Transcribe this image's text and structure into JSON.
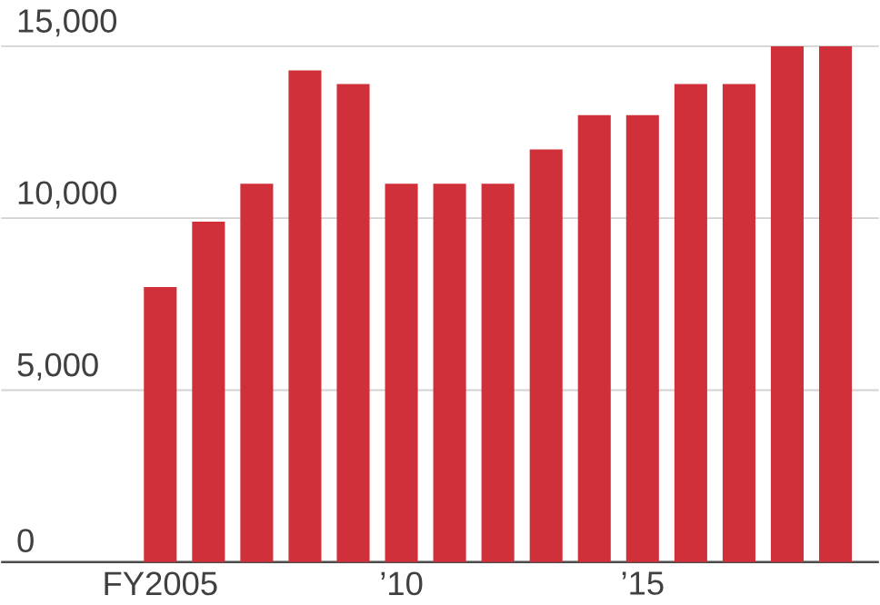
{
  "chart_data": {
    "type": "bar",
    "categories": [
      "FY2005",
      null,
      null,
      null,
      null,
      "’10",
      null,
      null,
      null,
      null,
      "’15",
      null,
      null,
      null,
      null
    ],
    "values": [
      8000,
      9900,
      11000,
      14300,
      13900,
      11000,
      11000,
      11000,
      12000,
      13000,
      13000,
      13900,
      13900,
      15000,
      15000
    ],
    "color": "#d0303a",
    "ylim": [
      0,
      15000
    ],
    "yticks": [
      {
        "value": 0,
        "label": "0"
      },
      {
        "value": 5000,
        "label": "5,000"
      },
      {
        "value": 10000,
        "label": "10,000"
      },
      {
        "value": 15000,
        "label": "15,000"
      }
    ],
    "grid": "y"
  }
}
